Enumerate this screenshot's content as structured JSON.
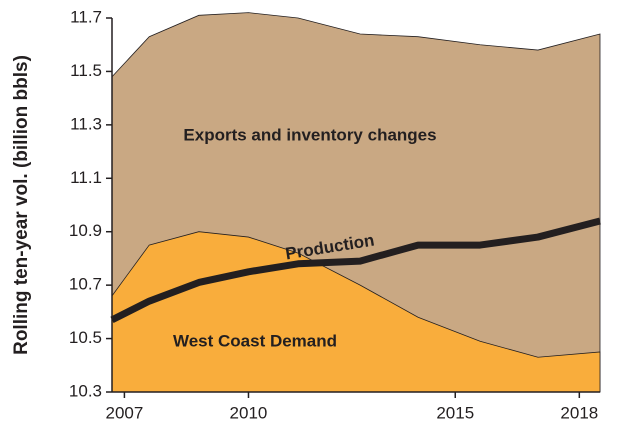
{
  "chart_data": {
    "type": "area",
    "y_label": "Rolling ten-year vol. (billion bbls)",
    "x": [
      2006.7,
      2007.6,
      2008.8,
      2010,
      2011.2,
      2012.7,
      2014.1,
      2015.6,
      2017,
      2018.5
    ],
    "series": [
      {
        "name": "Exports and inventory changes",
        "color": "#c9a883",
        "kind": "area",
        "values": [
          11.48,
          11.63,
          11.71,
          11.72,
          11.7,
          11.64,
          11.63,
          11.6,
          11.58,
          11.64
        ]
      },
      {
        "name": "West Coast Demand",
        "color": "#f9ad3c",
        "kind": "area",
        "values": [
          10.66,
          10.85,
          10.9,
          10.88,
          10.82,
          10.7,
          10.58,
          10.49,
          10.43,
          10.45
        ]
      },
      {
        "name": "Production",
        "color": "#231f20",
        "kind": "line",
        "values": [
          10.57,
          10.64,
          10.71,
          10.75,
          10.78,
          10.79,
          10.85,
          10.85,
          10.88,
          10.94
        ]
      }
    ],
    "xlim": [
      2006.7,
      2018.5
    ],
    "xticks": [
      2007,
      2010,
      2015,
      2018
    ],
    "ylim": [
      10.3,
      11.7
    ],
    "yticks": [
      10.3,
      10.5,
      10.7,
      10.9,
      11.1,
      11.3,
      11.5,
      11.7
    ]
  }
}
